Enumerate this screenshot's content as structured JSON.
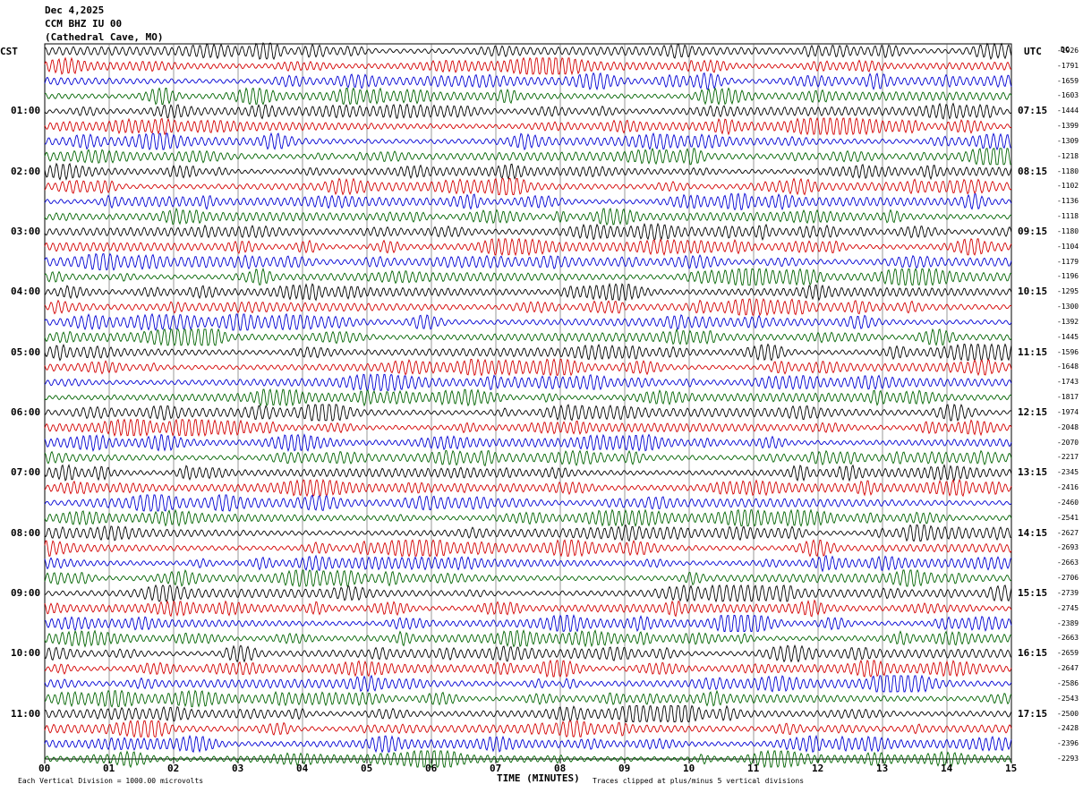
{
  "header": {
    "date": "Dec 4,2025",
    "station": "CCM BHZ IU 00",
    "location": "(Cathedral Cave, MO)"
  },
  "left_tz": "CST",
  "right_tz": "UTC",
  "dc_label": "DC",
  "footer": {
    "scale": "Each Vertical Division = 1000.00 microvolts",
    "xlabel": "TIME (MINUTES)",
    "clip": "Traces clipped at plus/minus 5 vertical divisions"
  },
  "colors": {
    "trace_cycle": [
      "#000000",
      "#d40000",
      "#0000d4",
      "#006400"
    ],
    "grid": "#000000"
  },
  "chart_data": {
    "type": "line",
    "subtype": "helicorder",
    "title": "CCM BHZ IU 00",
    "xlabel": "TIME (MINUTES)",
    "x_ticks": [
      "00",
      "01",
      "02",
      "03",
      "04",
      "05",
      "06",
      "07",
      "08",
      "09",
      "10",
      "11",
      "12",
      "13",
      "14",
      "15"
    ],
    "xlim": [
      0,
      15
    ],
    "minutes_per_line": 15,
    "line_count": 48,
    "left_hour_labels": [
      "01:00",
      "02:00",
      "03:00",
      "04:00",
      "05:00",
      "06:00",
      "07:00",
      "08:00",
      "09:00",
      "10:00",
      "11:00"
    ],
    "right_hour_labels": [
      "07:15",
      "08:15",
      "09:15",
      "10:15",
      "11:15",
      "12:15",
      "13:15",
      "14:15",
      "15:15",
      "16:15",
      "17:15"
    ],
    "dc_offsets": [
      "-1926",
      "-1791",
      "-1659",
      "-1603",
      "-1444",
      "-1399",
      "-1309",
      "-1218",
      "-1180",
      "-1102",
      "-1136",
      "-1118",
      "-1180",
      "-1104",
      "-1179",
      "-1196",
      "-1295",
      "-1300",
      "-1392",
      "-1445",
      "-1596",
      "-1648",
      "-1743",
      "-1817",
      "-1974",
      "-2048",
      "-2070",
      "-2217",
      "-2345",
      "-2416",
      "-2460",
      "-2541",
      "-2627",
      "-2693",
      "-2663",
      "-2706",
      "-2739",
      "-2745",
      "-2389",
      "-2663",
      "-2659",
      "-2647",
      "-2586",
      "-2543",
      "-2500",
      "-2428",
      "-2396",
      "-2293"
    ],
    "grid": true,
    "clip_divisions": 5,
    "vertical_division_microvolts": 1000.0
  }
}
